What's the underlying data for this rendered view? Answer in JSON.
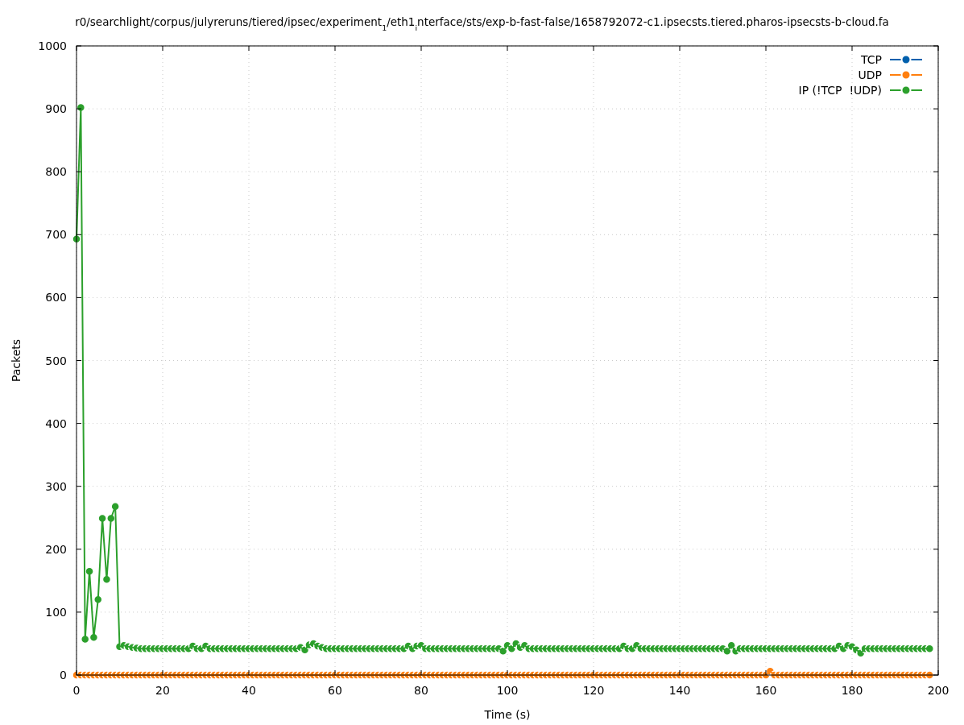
{
  "chart_data": {
    "type": "line",
    "title": "r0/searchlight/corpus/julyreruns/tiered/ipsec/experiment$_{1}$/eth1$_{i}$nterface/sts/exp-b-fast-false/1658792072-c1.ipsecsts.tiered.pharos-ipsecsts-b-cloud.fa",
    "xlabel": "Time (s)",
    "ylabel": "Packets",
    "x": [
      0,
      1,
      2,
      3,
      4,
      5,
      6,
      7,
      8,
      9,
      10,
      11,
      12,
      13,
      14,
      15,
      16,
      17,
      18,
      19,
      20,
      21,
      22,
      23,
      24,
      25,
      26,
      27,
      28,
      29,
      30,
      31,
      32,
      33,
      34,
      35,
      36,
      37,
      38,
      39,
      40,
      41,
      42,
      43,
      44,
      45,
      46,
      47,
      48,
      49,
      50,
      51,
      52,
      53,
      54,
      55,
      56,
      57,
      58,
      59,
      60,
      61,
      62,
      63,
      64,
      65,
      66,
      67,
      68,
      69,
      70,
      71,
      72,
      73,
      74,
      75,
      76,
      77,
      78,
      79,
      80,
      81,
      82,
      83,
      84,
      85,
      86,
      87,
      88,
      89,
      90,
      91,
      92,
      93,
      94,
      95,
      96,
      97,
      98,
      99,
      100,
      101,
      102,
      103,
      104,
      105,
      106,
      107,
      108,
      109,
      110,
      111,
      112,
      113,
      114,
      115,
      116,
      117,
      118,
      119,
      120,
      121,
      122,
      123,
      124,
      125,
      126,
      127,
      128,
      129,
      130,
      131,
      132,
      133,
      134,
      135,
      136,
      137,
      138,
      139,
      140,
      141,
      142,
      143,
      144,
      145,
      146,
      147,
      148,
      149,
      150,
      151,
      152,
      153,
      154,
      155,
      156,
      157,
      158,
      159,
      160,
      161,
      162,
      163,
      164,
      165,
      166,
      167,
      168,
      169,
      170,
      171,
      172,
      173,
      174,
      175,
      176,
      177,
      178,
      179,
      180,
      181,
      182,
      183,
      184,
      185,
      186,
      187,
      188,
      189,
      190,
      191,
      192,
      193,
      194,
      195,
      196,
      197,
      198
    ],
    "series": [
      {
        "name": "TCP",
        "color": "#0060ad",
        "values": [
          null,
          null,
          null,
          null,
          null,
          null,
          null,
          null,
          null,
          null,
          null,
          null,
          null,
          null,
          null,
          null,
          null,
          null,
          null,
          null,
          null,
          null,
          null,
          null,
          null,
          null,
          null,
          null,
          null,
          null,
          null,
          null,
          null,
          null,
          null,
          null,
          null,
          null,
          null,
          null,
          null,
          null,
          null,
          null,
          null,
          null,
          null,
          null,
          null,
          null,
          null,
          null,
          null,
          null,
          null,
          null,
          null,
          null,
          null,
          null,
          null,
          null,
          null,
          null,
          null,
          null,
          null,
          null,
          null,
          null,
          null,
          null,
          null,
          null,
          null,
          null,
          null,
          null,
          null,
          null,
          null,
          null,
          null,
          null,
          null,
          null,
          null,
          null,
          null,
          null,
          null,
          null,
          null,
          null,
          null,
          null,
          null,
          null,
          null,
          null,
          null,
          null,
          null,
          null,
          null,
          null,
          null,
          null,
          null,
          null,
          null,
          null,
          null,
          null,
          null,
          null,
          null,
          null,
          null,
          null,
          null,
          null,
          null,
          null,
          null,
          null,
          null,
          null,
          null,
          null,
          null,
          null,
          null,
          null,
          null,
          null,
          null,
          null,
          null,
          null,
          null,
          null,
          null,
          null,
          null,
          null,
          null,
          null,
          null,
          null,
          null,
          null,
          null,
          null,
          null,
          null,
          null,
          null,
          null,
          null,
          null,
          null,
          null,
          null,
          null,
          null,
          null,
          null,
          null,
          null,
          null,
          null,
          null,
          null,
          null,
          null,
          null,
          null,
          null,
          null,
          null,
          null,
          null,
          null,
          null,
          null,
          null,
          null,
          null,
          null,
          null,
          null,
          null,
          null,
          null,
          null,
          null,
          null,
          null
        ]
      },
      {
        "name": "UDP",
        "color": "#ff7f0e",
        "values": [
          0,
          0,
          0,
          0,
          0,
          0,
          0,
          0,
          0,
          0,
          0,
          0,
          0,
          0,
          0,
          0,
          0,
          0,
          0,
          0,
          0,
          0,
          0,
          0,
          0,
          0,
          0,
          0,
          0,
          0,
          0,
          0,
          0,
          0,
          0,
          0,
          0,
          0,
          0,
          0,
          0,
          0,
          0,
          0,
          0,
          0,
          0,
          0,
          0,
          0,
          0,
          0,
          0,
          0,
          0,
          0,
          0,
          0,
          0,
          0,
          0,
          0,
          0,
          0,
          0,
          0,
          0,
          0,
          0,
          0,
          0,
          0,
          0,
          0,
          0,
          0,
          0,
          0,
          0,
          0,
          0,
          0,
          0,
          0,
          0,
          0,
          0,
          0,
          0,
          0,
          0,
          0,
          0,
          0,
          0,
          0,
          0,
          0,
          0,
          0,
          0,
          0,
          0,
          0,
          0,
          0,
          0,
          0,
          0,
          0,
          0,
          0,
          0,
          0,
          0,
          0,
          0,
          0,
          0,
          0,
          0,
          0,
          0,
          0,
          0,
          0,
          0,
          0,
          0,
          0,
          0,
          0,
          0,
          0,
          0,
          0,
          0,
          0,
          0,
          0,
          0,
          0,
          0,
          0,
          0,
          0,
          0,
          0,
          0,
          0,
          0,
          0,
          0,
          0,
          0,
          0,
          0,
          0,
          0,
          0,
          0,
          6,
          0,
          0,
          0,
          0,
          0,
          0,
          0,
          0,
          0,
          0,
          0,
          0,
          0,
          0,
          0,
          0,
          0,
          0,
          0,
          0,
          0,
          0,
          0,
          0,
          0,
          0,
          0,
          0,
          0,
          0,
          0,
          0,
          0,
          0,
          0,
          0,
          0
        ]
      },
      {
        "name": "IP (!TCP  !UDP)",
        "color": "#2ca02c",
        "values": [
          693,
          902,
          57,
          165,
          60,
          120,
          249,
          152,
          249,
          268,
          45,
          47,
          45,
          44,
          43,
          42,
          42,
          42,
          42,
          42,
          42,
          42,
          42,
          42,
          42,
          42,
          42,
          46,
          42,
          42,
          46,
          42,
          42,
          42,
          42,
          42,
          42,
          42,
          42,
          42,
          42,
          42,
          42,
          42,
          42,
          42,
          42,
          42,
          42,
          42,
          42,
          42,
          44,
          40,
          48,
          50,
          46,
          44,
          42,
          42,
          42,
          42,
          42,
          42,
          42,
          42,
          42,
          42,
          42,
          42,
          42,
          42,
          42,
          42,
          42,
          42,
          42,
          46,
          42,
          46,
          47,
          42,
          42,
          42,
          42,
          42,
          42,
          42,
          42,
          42,
          42,
          42,
          42,
          42,
          42,
          42,
          42,
          42,
          42,
          38,
          47,
          42,
          50,
          44,
          47,
          42,
          42,
          42,
          42,
          42,
          42,
          42,
          42,
          42,
          42,
          42,
          42,
          42,
          42,
          42,
          42,
          42,
          42,
          42,
          42,
          42,
          42,
          46,
          42,
          42,
          47,
          42,
          42,
          42,
          42,
          42,
          42,
          42,
          42,
          42,
          42,
          42,
          42,
          42,
          42,
          42,
          42,
          42,
          42,
          42,
          42,
          38,
          47,
          38,
          42,
          42,
          42,
          42,
          42,
          42,
          42,
          42,
          42,
          42,
          42,
          42,
          42,
          42,
          42,
          42,
          42,
          42,
          42,
          42,
          42,
          42,
          42,
          46,
          42,
          47,
          45,
          40,
          35,
          42,
          42,
          42,
          42,
          42,
          42,
          42,
          42,
          42,
          42,
          42,
          42,
          42,
          42,
          42,
          42
        ]
      }
    ],
    "xlim": [
      0,
      200
    ],
    "xticks": [
      0,
      20,
      40,
      60,
      80,
      100,
      120,
      140,
      160,
      180,
      200
    ],
    "ylim": [
      0,
      1000
    ],
    "yticks": [
      0,
      100,
      200,
      300,
      400,
      500,
      600,
      700,
      800,
      900,
      1000
    ],
    "grid": true,
    "legend": "top right",
    "marker": "circle",
    "line_style": "solid"
  }
}
